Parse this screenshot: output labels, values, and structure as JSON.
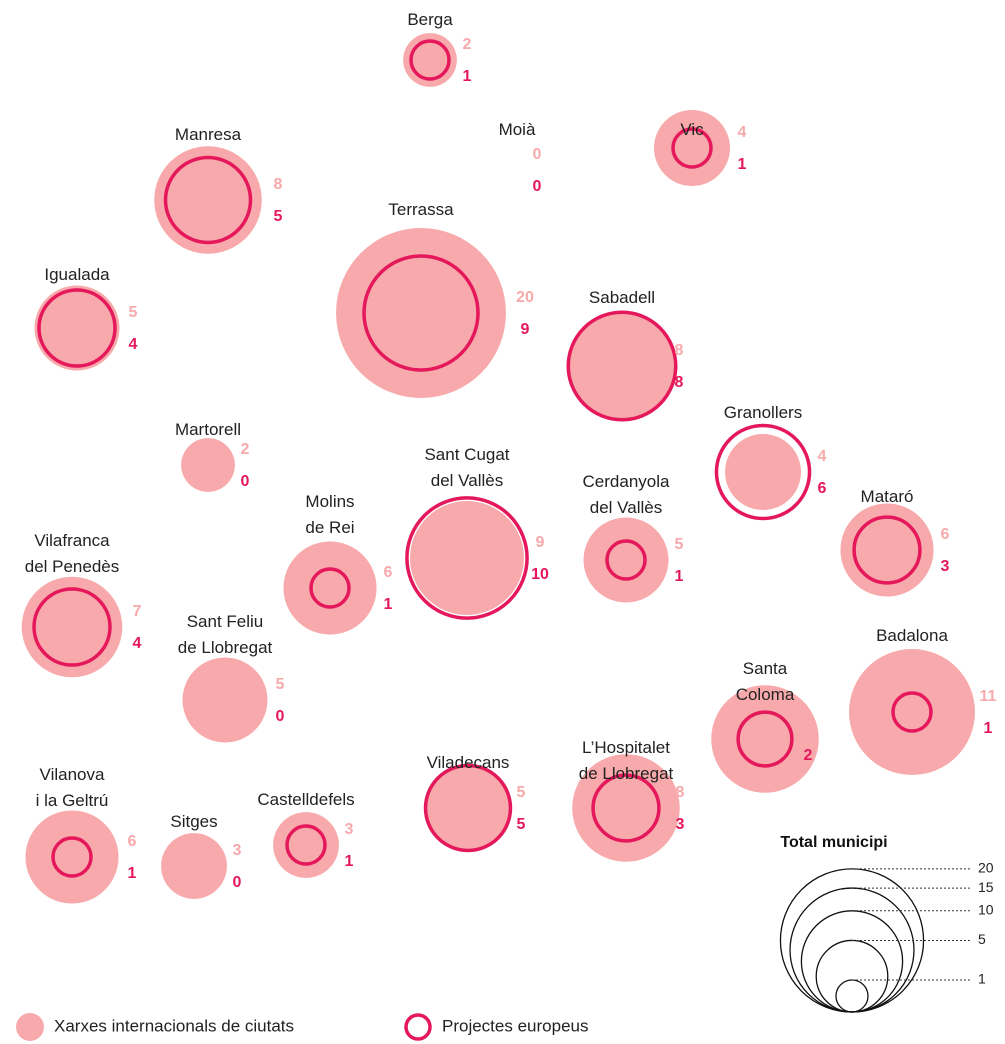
{
  "chart_data": {
    "type": "bubble",
    "categories": [
      "Berga",
      "Moià",
      "Vic",
      "Manresa",
      "Terrassa",
      "Igualada",
      "Sabadell",
      "Martorell",
      "Granollers",
      "Sant Cugat\ndel Vallès",
      "Cerdanyola\ndel Vallès",
      "Molins\nde Rei",
      "Vilafranca\ndel Penedès",
      "Mataró",
      "Sant Feliu\nde Llobregat",
      "Badalona",
      "Santa\nColoma",
      "L’Hospitalet\nde Llobregat",
      "Viladecans",
      "Vilanova\ni la Geltrú",
      "Sitges",
      "Castelldefels"
    ],
    "series": [
      {
        "name": "Xarxes internacionals de ciutats",
        "color": "#f7a9ab",
        "values": [
          2,
          0,
          4,
          8,
          20,
          5,
          8,
          2,
          4,
          9,
          5,
          6,
          7,
          6,
          5,
          11,
          8,
          8,
          5,
          6,
          3,
          3
        ]
      },
      {
        "name": "Projectes europeus",
        "color": "#e4185a",
        "values": [
          1,
          0,
          1,
          5,
          9,
          4,
          8,
          0,
          6,
          10,
          1,
          1,
          4,
          3,
          0,
          1,
          2,
          3,
          5,
          1,
          0,
          1
        ]
      }
    ],
    "size_legend": {
      "title": "Total municipi",
      "values": [
        20,
        15,
        10,
        5,
        1
      ]
    }
  }
}
